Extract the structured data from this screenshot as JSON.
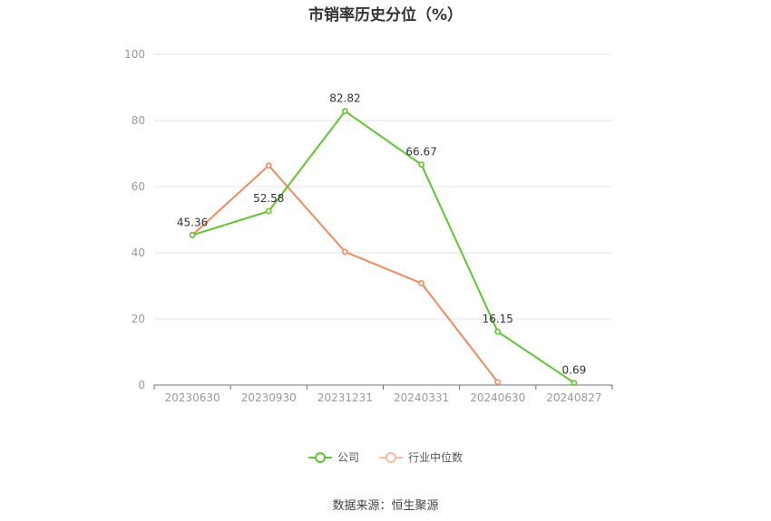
{
  "chart_data": {
    "type": "line",
    "title": "市销率历史分位（%）",
    "categories": [
      "20230630",
      "20230930",
      "20231231",
      "20240331",
      "20240630",
      "20240827"
    ],
    "ylim": [
      0,
      100
    ],
    "yticks": [
      0,
      20,
      40,
      60,
      80,
      100
    ],
    "grid": true,
    "legend_position": "bottom",
    "series": [
      {
        "name": "公司",
        "color": "#5ec72f",
        "values": [
          45.36,
          52.58,
          82.82,
          66.67,
          16.15,
          0.69
        ],
        "labels": [
          "45.36",
          "52.58",
          "82.82",
          "66.67",
          "16.15",
          "0.69"
        ]
      },
      {
        "name": "行业中位数",
        "color": "#f0895e",
        "values": [
          45.36,
          66.4,
          40.3,
          30.8,
          0.9,
          null
        ],
        "labels": []
      }
    ]
  },
  "source": "数据来源：恒生聚源"
}
